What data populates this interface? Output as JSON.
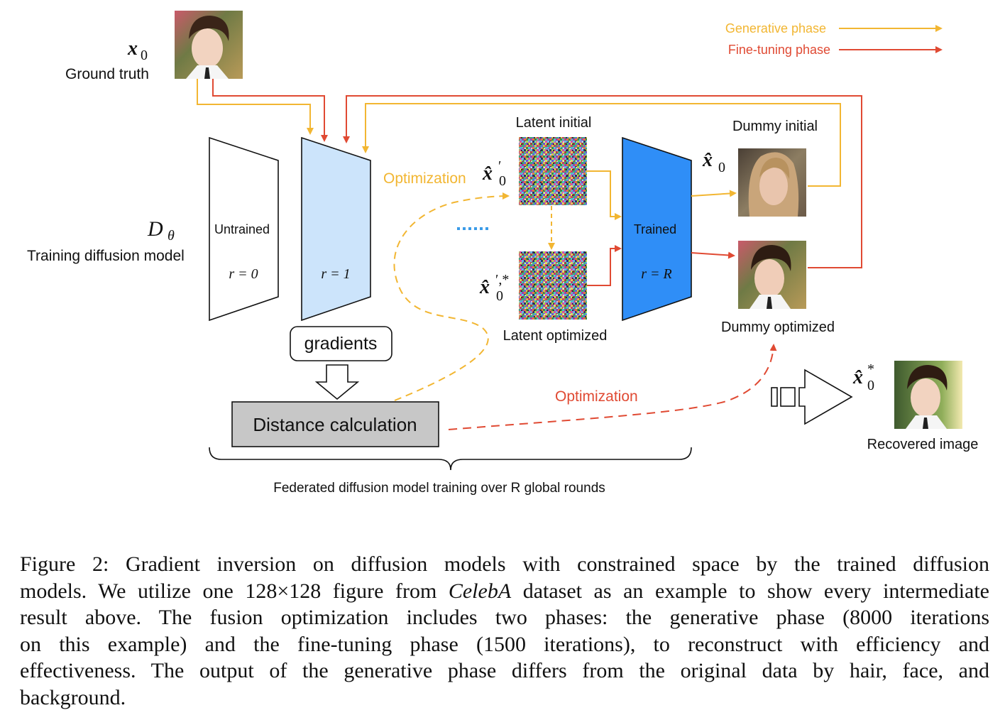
{
  "legend": {
    "generative_label": "Generative phase",
    "finetune_label": "Fine-tuning phase",
    "generative_color": "#f2b632",
    "finetune_color": "#e04a33"
  },
  "colors": {
    "untrained_fill": "#ffffff",
    "r1_fill": "#cce4fb",
    "trained_fill": "#2f8ef7",
    "distance_fill": "#c7c7c7",
    "dots_color": "#3a9be8"
  },
  "ground_truth": {
    "symbol": "x",
    "subscript": "0",
    "label": "Ground truth"
  },
  "model": {
    "symbol": "D",
    "subscript": "θ",
    "label": "Training diffusion model"
  },
  "untrained": {
    "label": "Untrained",
    "round": "r = 0"
  },
  "r1": {
    "round": "r = 1"
  },
  "trained": {
    "label": "Trained",
    "round": "r = R"
  },
  "gradients_label": "gradients",
  "distance_label": "Distance calculation",
  "optimization_yellow": "Optimization",
  "optimization_red": "Optimization",
  "latent_initial": {
    "label": "Latent initial",
    "symbol": "x̂",
    "sup": "′",
    "sub": "0"
  },
  "latent_optimized": {
    "label": "Latent optimized",
    "symbol": "x̂",
    "sup": "′,*",
    "sub": "0"
  },
  "dummy_initial": {
    "label": "Dummy initial",
    "symbol": "x̂",
    "sub": "0"
  },
  "dummy_optimized": {
    "label": "Dummy optimized"
  },
  "recovered": {
    "label": "Recovered image",
    "symbol": "x̂",
    "sup": "*",
    "sub": "0"
  },
  "brace_label": "Federated diffusion model training over R global rounds",
  "caption": {
    "line1": "Figure 2: Gradient inversion on diffusion models with constrained space by the trained diffusion",
    "line2_a": "models. We utilize one ",
    "line2_math": "128×128",
    "line2_b": " figure from ",
    "line2_em": "CelebA",
    "line2_c": " dataset as an example to show every intermediate",
    "line3": "result above. The fusion optimization includes two phases: the generative phase (8000 iterations",
    "line4": "on this example) and the fine-tuning phase (1500 iterations), to reconstruct with efficiency and",
    "line5": "effectiveness. The output of the generative phase differs from the original data by hair, face, and",
    "line6": "background."
  }
}
